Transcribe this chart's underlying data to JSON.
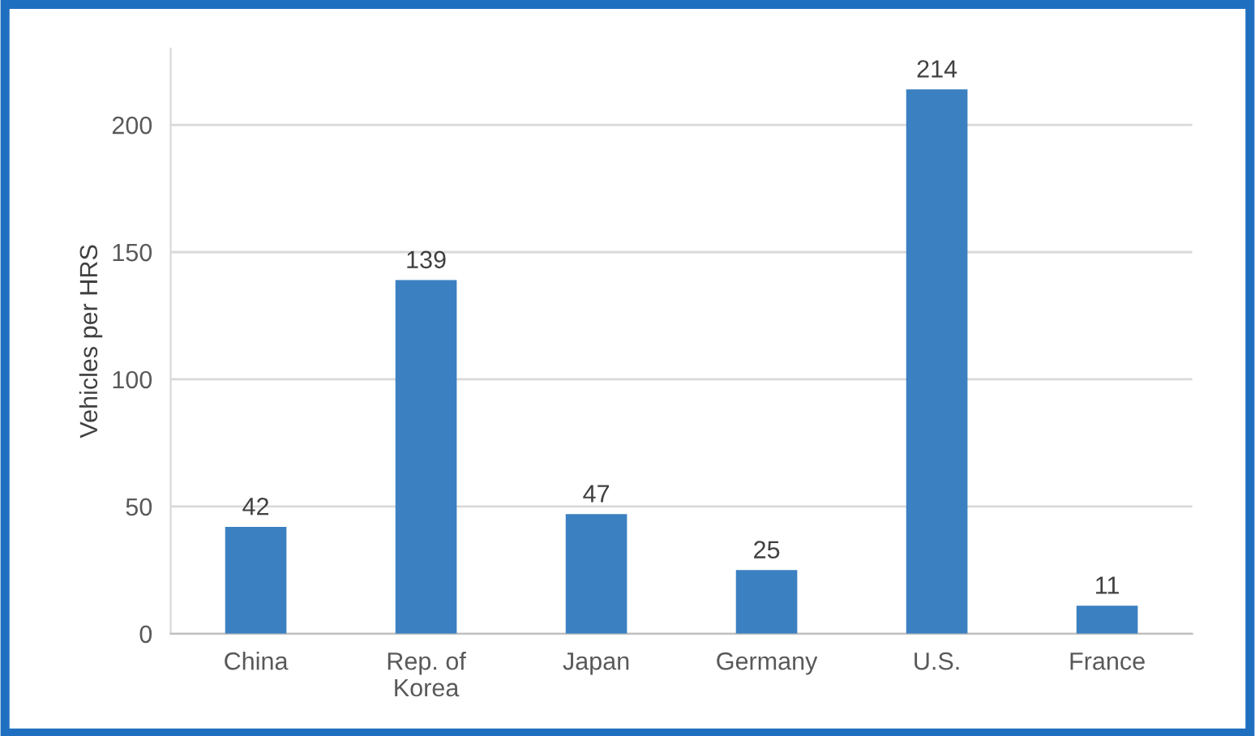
{
  "chart_data": {
    "type": "bar",
    "ylabel": "Vehicles per HRS",
    "categories": [
      "China",
      "Rep. of\nKorea",
      "Japan",
      "Germany",
      "U.S.",
      "France"
    ],
    "values": [
      42,
      139,
      47,
      25,
      214,
      11
    ],
    "color": "#3b80c1",
    "ylim": [
      0,
      230
    ],
    "yticks": [
      0,
      50,
      100,
      150,
      200
    ],
    "grid": "y",
    "data_labels": true
  }
}
